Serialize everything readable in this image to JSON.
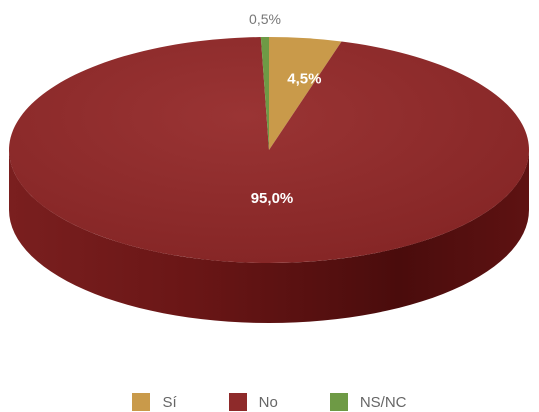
{
  "chart_data": {
    "type": "pie",
    "style": "3d",
    "series": [
      {
        "name": "Sí",
        "value": 4.5,
        "label": "4,5%",
        "color": "#C99A4A"
      },
      {
        "name": "No",
        "value": 95.0,
        "label": "95,0%",
        "color": "#8E2A2A"
      },
      {
        "name": "NS/NC",
        "value": 0.5,
        "label": "0,5%",
        "color": "#6E9A45"
      }
    ],
    "legend_position": "bottom"
  }
}
